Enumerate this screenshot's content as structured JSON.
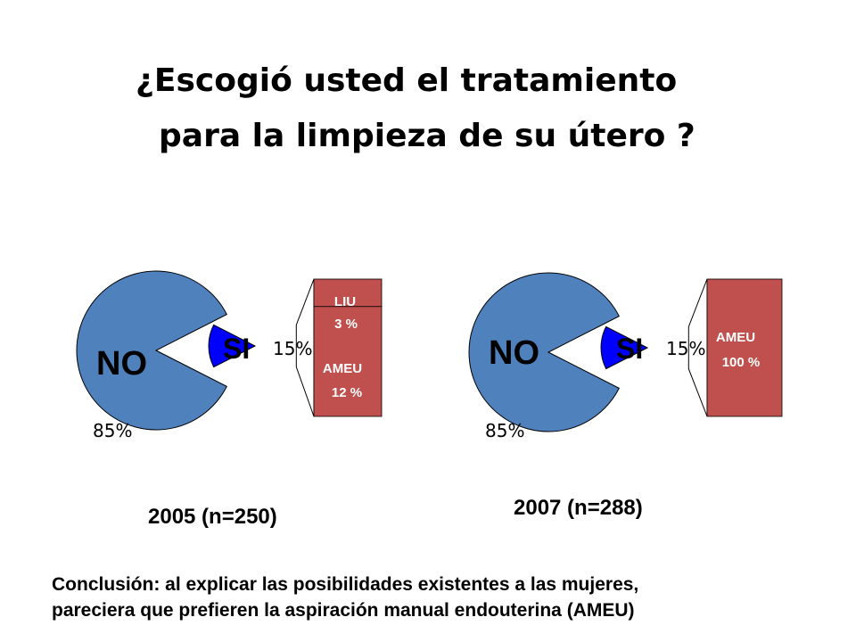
{
  "title": {
    "line1": "¿Escogió usted el tratamiento",
    "line2": "para la limpieza de su útero ?"
  },
  "colors": {
    "no_slice": "#4f81bd",
    "si_slice": "#0000ff",
    "breakdown_bar": "#c0504d",
    "label_text": "#ffffff"
  },
  "chart_data": [
    {
      "type": "pie",
      "caption": "2005 (n=250)",
      "slices": [
        {
          "label": "NO",
          "value": 85,
          "value_label": "85%"
        },
        {
          "label": "SI",
          "value": 15,
          "value_label": "15%"
        }
      ],
      "breakdown": [
        {
          "label": "LIU",
          "value_label": "3 %",
          "value": 3
        },
        {
          "label": "AMEU",
          "value_label": "12 %",
          "value": 12
        }
      ]
    },
    {
      "type": "pie",
      "caption": "2007 (n=288)",
      "slices": [
        {
          "label": "NO",
          "value": 85,
          "value_label": "85%"
        },
        {
          "label": "SI",
          "value": 15,
          "value_label": "15%"
        }
      ],
      "breakdown": [
        {
          "label": "AMEU",
          "value_label": "100 %",
          "value": 100
        }
      ]
    }
  ],
  "conclusion": {
    "line1": "Conclusión: al explicar las posibilidades existentes a las mujeres,",
    "line2": "pareciera que prefieren la aspiración manual endouterina (AMEU)"
  }
}
